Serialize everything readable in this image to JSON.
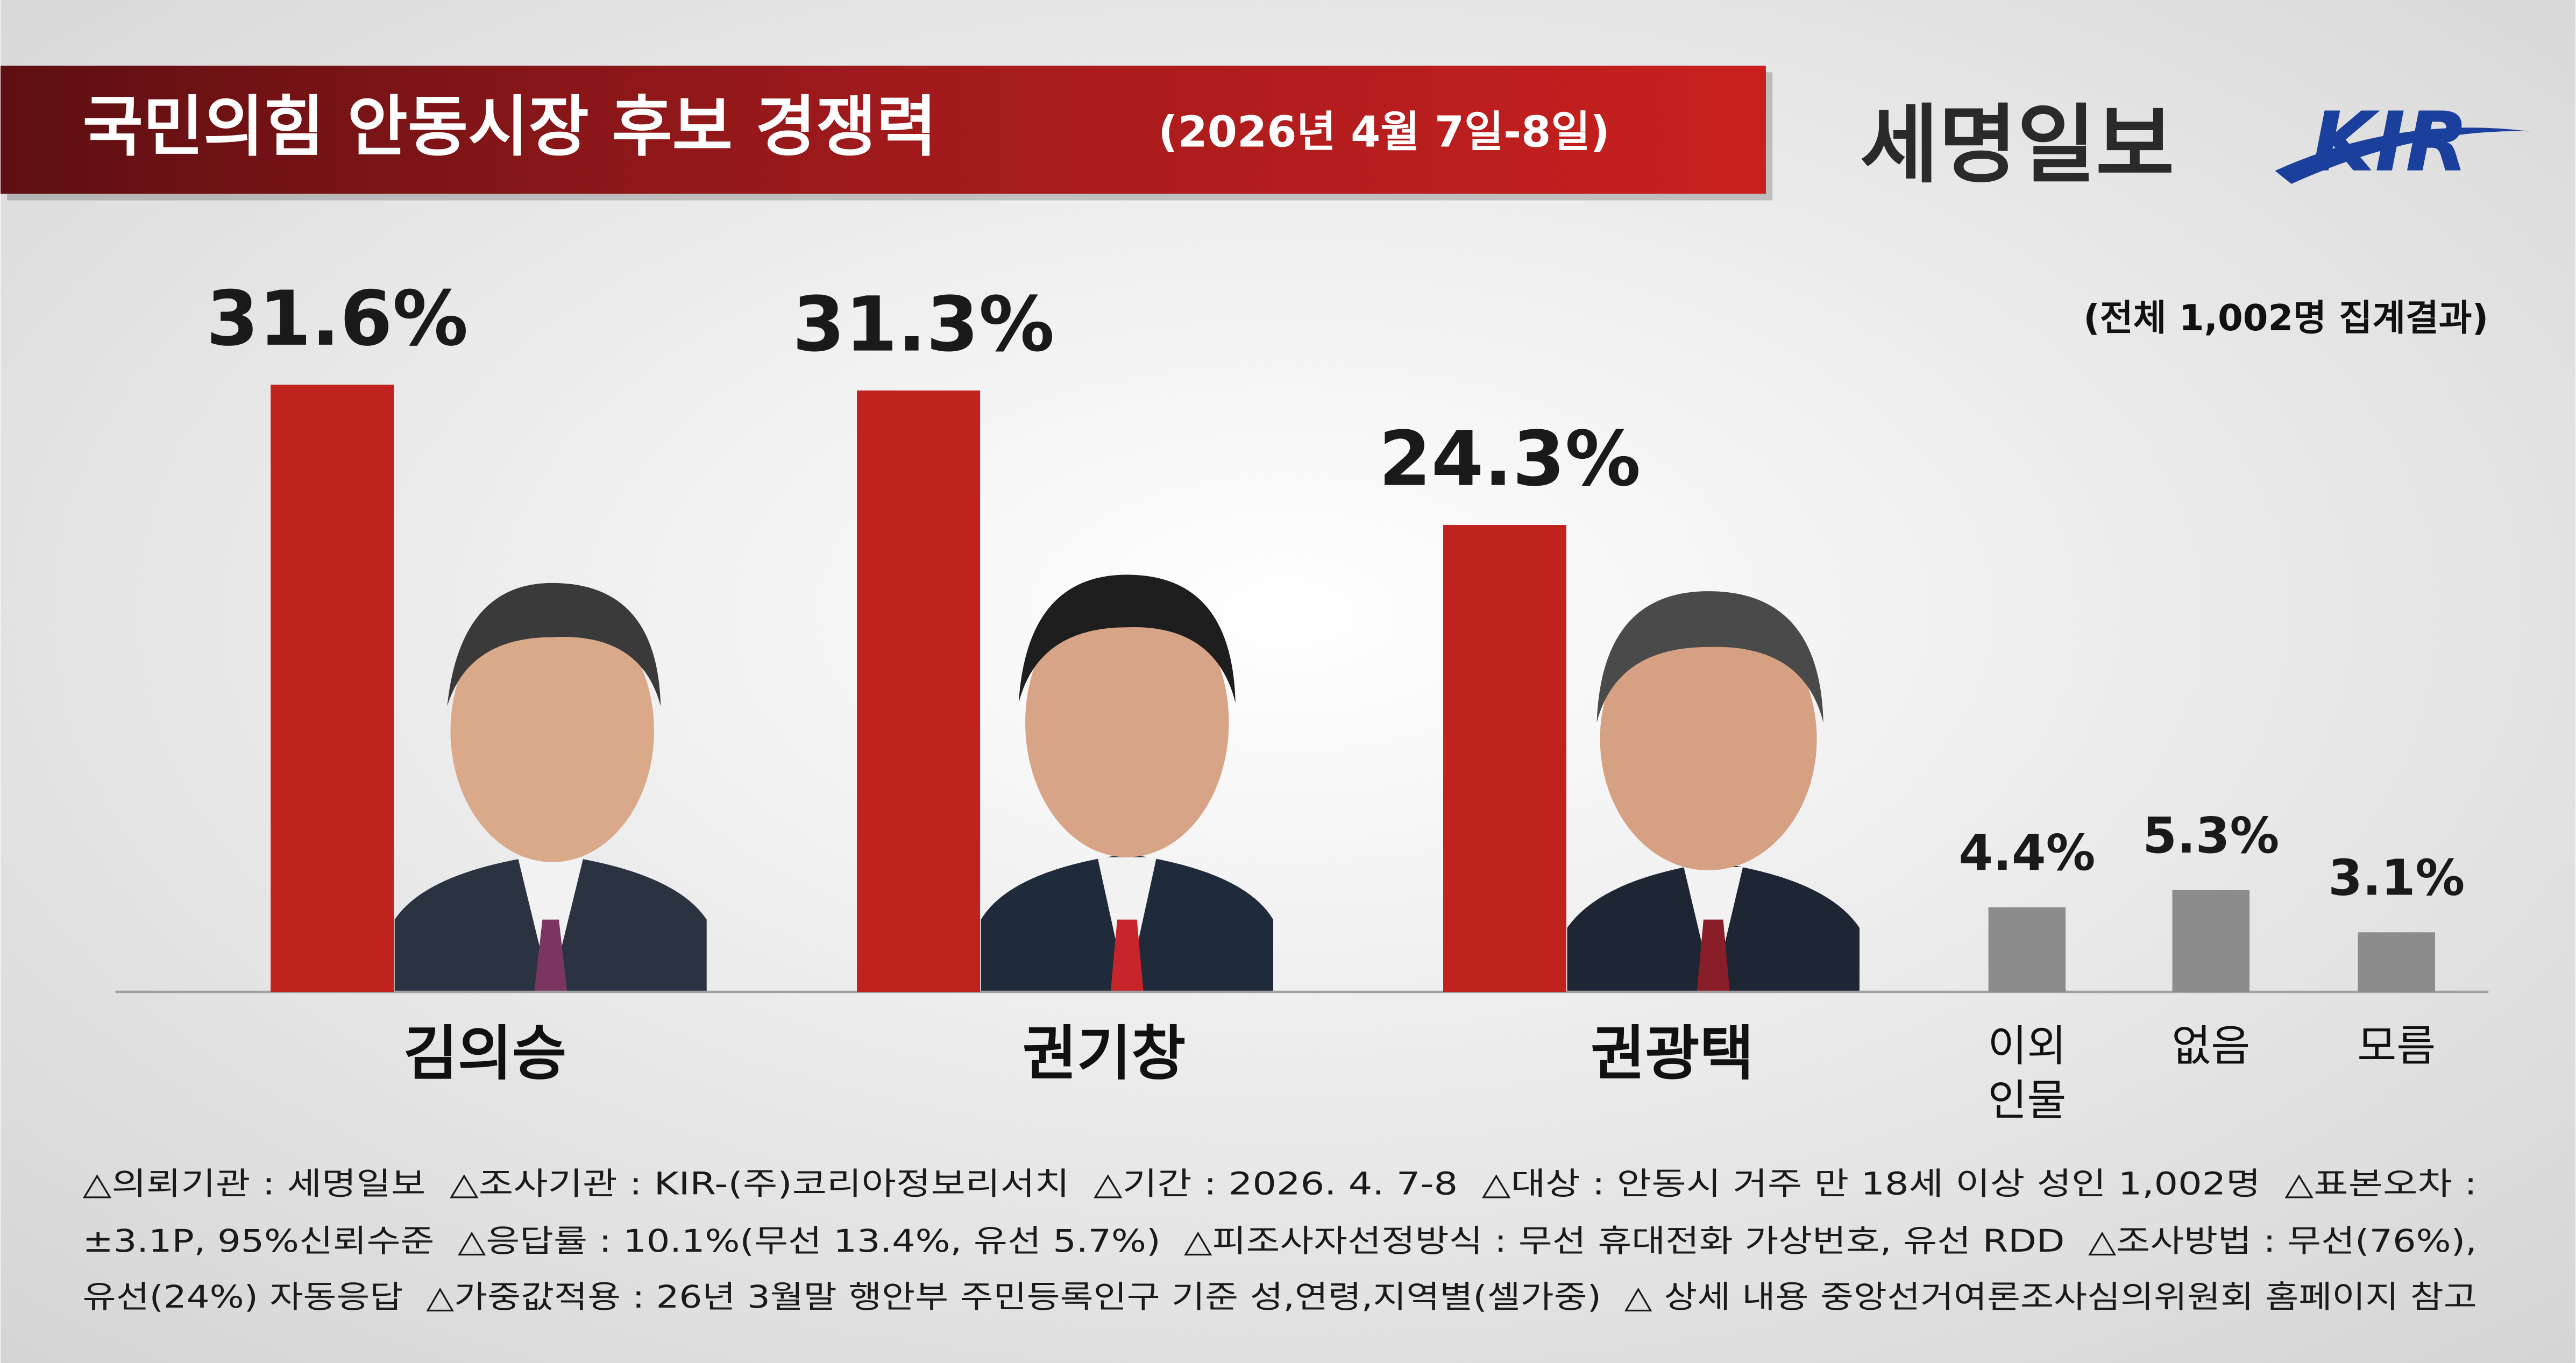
{
  "header": {
    "publisher": "세명일보",
    "logo": "KIR"
  },
  "chart_data": {
    "type": "bar",
    "title": "국민의힘 안동시장 후보 경쟁력",
    "subtitle": "(2026년 4월 7일-8일)",
    "note": "(전체 1,002명 집계결과)",
    "categories": [
      "김의승",
      "권기창",
      "권광택",
      "이외 인물",
      "없음",
      "모름"
    ],
    "values": [
      31.6,
      31.3,
      24.3,
      4.4,
      5.3,
      3.1
    ],
    "value_labels": [
      "31.6%",
      "31.3%",
      "24.3%",
      "4.4%",
      "5.3%",
      "3.1%"
    ],
    "colors": [
      "#c0231e",
      "#c0231e",
      "#c0231e",
      "#8c8c8c",
      "#8c8c8c",
      "#8c8c8c"
    ]
  },
  "footnotes": [
    "△의뢰기관 : 세명일보  △조사기관 : KIR-(주)코리아정보리서치  △기간 : 2026. 4. 7-8  △대상 : 안동시 거주 만 18세 이상 성인 1,002명  △표본오차 :",
    "±3.1P, 95%신뢰수준  △응답률 : 10.1%(무선 13.4%, 유선 5.7%)  △피조사자선정방식 : 무선 휴대전화 가상번호, 유선 RDD  △조사방법 : 무선(76%),",
    "유선(24%) 자동응답  △가중값적용 : 26년 3월말 행안부 주민등록인구 기준 성,연령,지역별(셀가중)  △ 상세 내용 중앙선거여론조사심의위원회 홈페이지 참고"
  ]
}
